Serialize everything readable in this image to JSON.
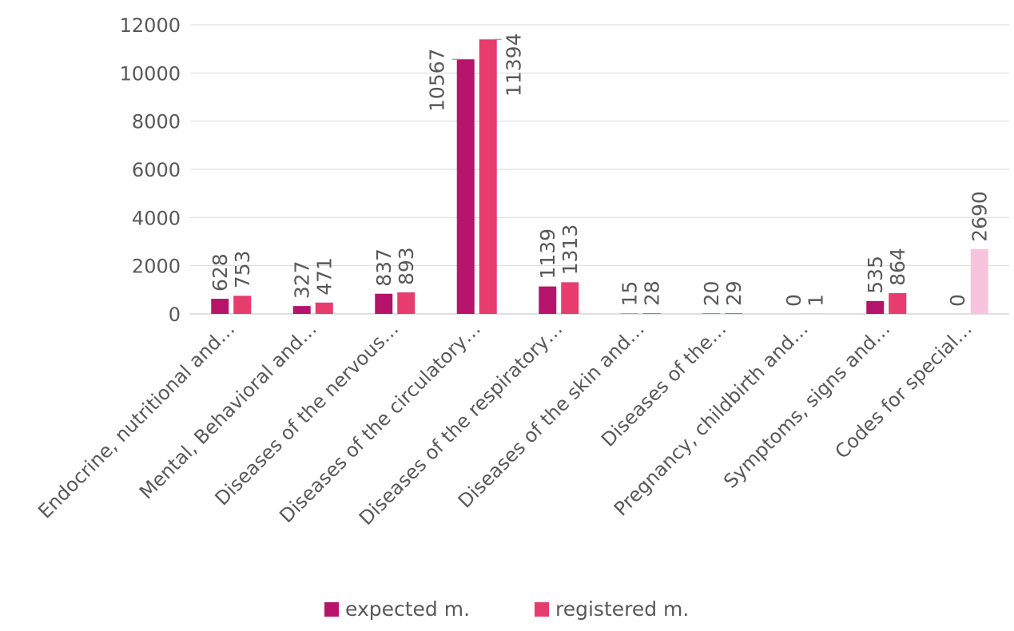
{
  "chart_data": {
    "type": "bar",
    "categories": [
      "Endocrine, nutritional and…",
      "Mental, Behavioral and…",
      "Diseases of the nervous…",
      "Diseases of the circulatory…",
      "Diseases of the respiratory…",
      "Diseases of the skin and…",
      "Diseases of the…",
      "Pregnancy, childbirth and…",
      "Symptoms, signs and…",
      "Codes for special…"
    ],
    "series": [
      {
        "name": "expected m.",
        "color": "#b5146a",
        "values": [
          628,
          327,
          837,
          10567,
          1139,
          15,
          20,
          0,
          535,
          0
        ],
        "labels": [
          "628",
          "327",
          "837",
          "10567",
          "1139",
          "15",
          "20",
          "0",
          "535",
          "0"
        ]
      },
      {
        "name": "registered m.",
        "color": "#e63c6e",
        "values": [
          753,
          471,
          893,
          11394,
          1313,
          28,
          29,
          1,
          864,
          2690
        ],
        "labels": [
          "753",
          "471",
          "893",
          "11394",
          "1313",
          "28",
          "29",
          "1",
          "864",
          "2690"
        ],
        "point_colors": {
          "9": "#f8c3dd"
        }
      }
    ],
    "yticks": [
      "0",
      "2000",
      "4000",
      "6000",
      "8000",
      "10000",
      "12000"
    ],
    "ylim": [
      0,
      12000
    ],
    "grid": true,
    "legend": "bottom"
  }
}
